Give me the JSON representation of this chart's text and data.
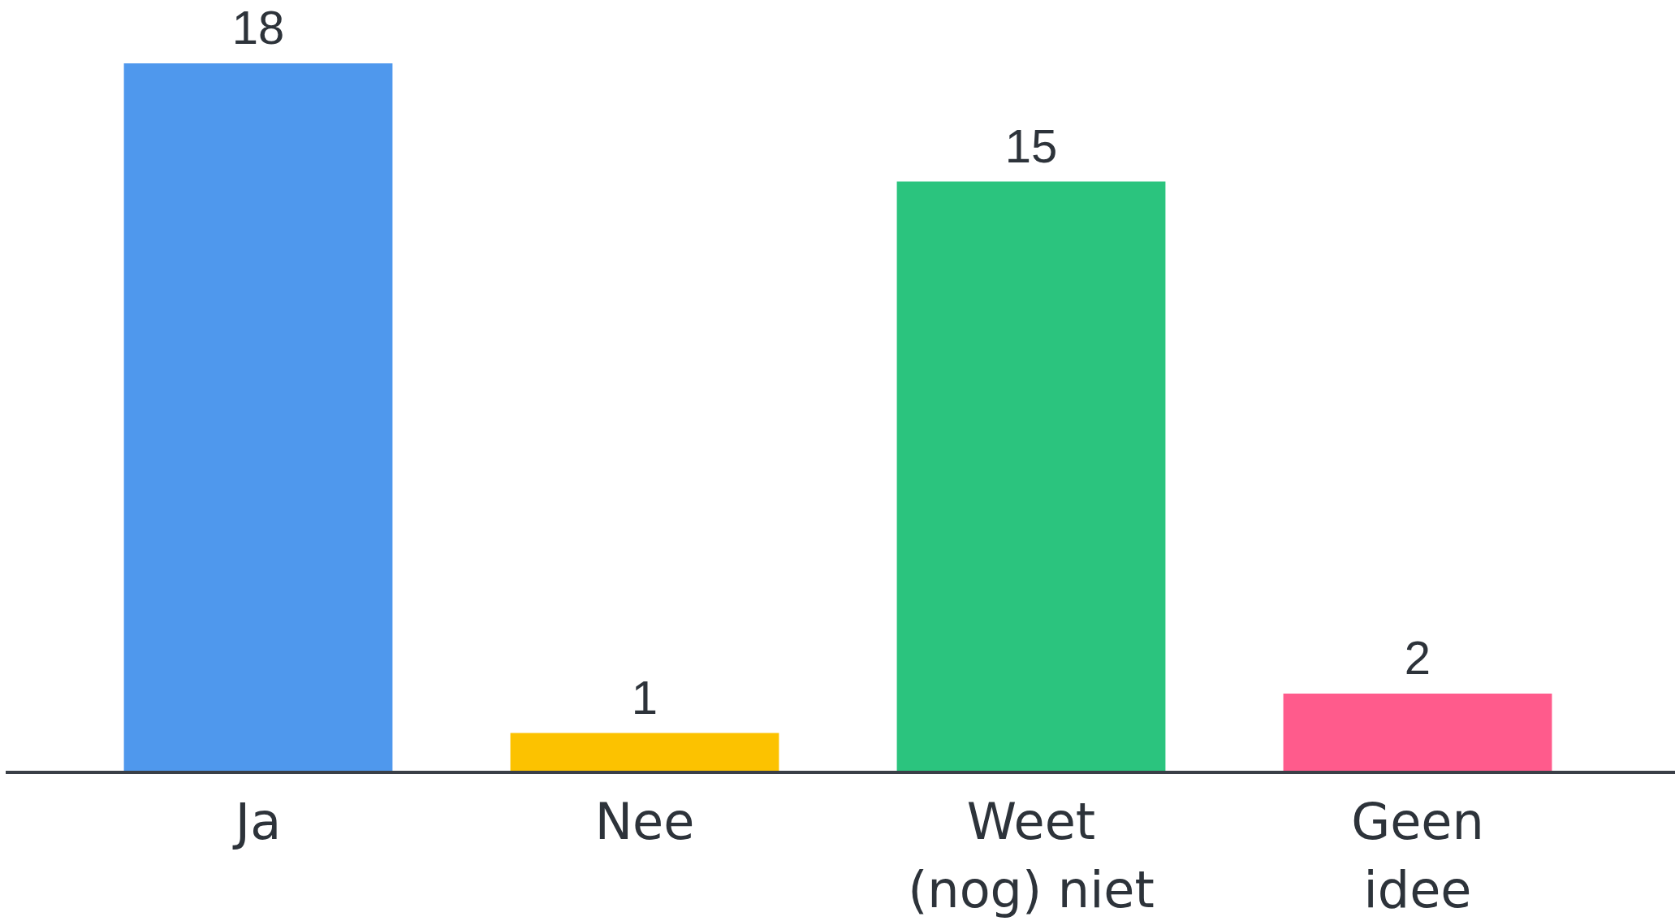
{
  "chart_data": {
    "type": "bar",
    "categories": [
      "Ja",
      "Nee",
      "Weet (nog) niet",
      "Geen idee"
    ],
    "values": [
      18,
      1,
      15,
      2
    ],
    "colors": [
      "#4f98ed",
      "#fcc200",
      "#2bc47e",
      "#ff5b8c"
    ],
    "data_labels": true
  }
}
